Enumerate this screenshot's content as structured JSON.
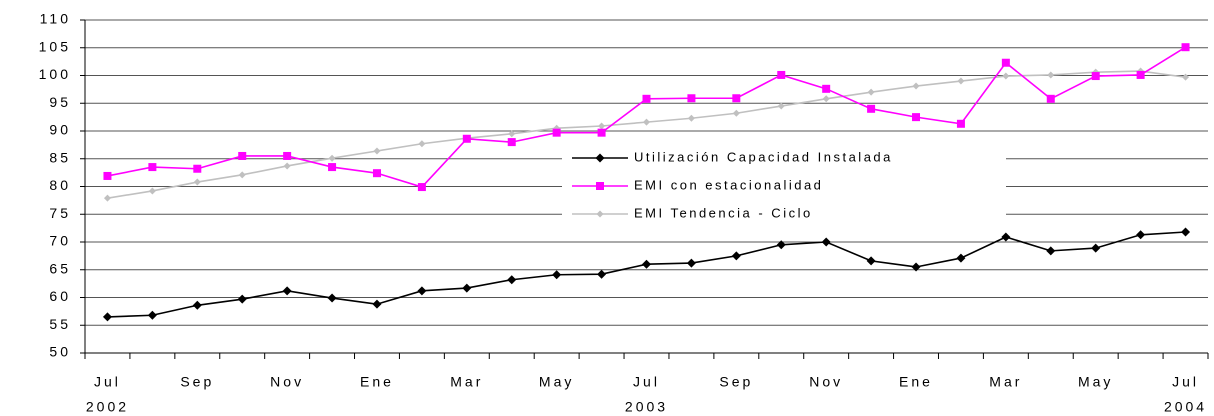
{
  "chart_data": {
    "type": "line",
    "categories": [
      "Jul",
      null,
      "Sep",
      null,
      "Nov",
      null,
      "Ene",
      null,
      "Mar",
      null,
      "May",
      null,
      "Jul",
      null,
      "Sep",
      null,
      "Nov",
      null,
      "Ene",
      null,
      "Mar",
      null,
      "May",
      null,
      "Jul"
    ],
    "years": [
      "2002",
      null,
      null,
      null,
      null,
      null,
      null,
      null,
      null,
      null,
      null,
      null,
      "2003",
      null,
      null,
      null,
      null,
      null,
      null,
      null,
      null,
      null,
      null,
      null,
      "2004"
    ],
    "series": [
      {
        "name": "Utilización Capacidad Instalada",
        "color": "#000000",
        "marker": "diamond",
        "values": [
          56.5,
          56.8,
          58.6,
          59.7,
          61.2,
          59.9,
          58.8,
          61.2,
          61.7,
          63.2,
          64.1,
          64.2,
          66.0,
          66.2,
          67.5,
          69.5,
          70.0,
          66.6,
          65.5,
          67.1,
          70.9,
          68.4,
          68.9,
          71.3,
          71.8
        ]
      },
      {
        "name": "EMI con estacionalidad",
        "color": "#ff00ff",
        "marker": "square",
        "values": [
          81.9,
          83.5,
          83.2,
          85.5,
          85.5,
          83.5,
          82.4,
          79.9,
          88.6,
          88.0,
          89.7,
          89.7,
          95.8,
          95.9,
          95.9,
          100.1,
          97.6,
          94.0,
          92.5,
          91.3,
          102.3,
          95.8,
          99.9,
          100.1,
          105.1
        ]
      },
      {
        "name": "EMI Tendencia - Ciclo",
        "color": "#c0c0c0",
        "marker": "diamond",
        "values": [
          77.9,
          79.2,
          80.8,
          82.1,
          83.7,
          85.1,
          86.4,
          87.7,
          88.7,
          89.5,
          90.5,
          90.9,
          91.6,
          92.3,
          93.2,
          94.5,
          95.8,
          97.0,
          98.1,
          99.0,
          99.9,
          100.1,
          100.6,
          100.8,
          99.7
        ]
      }
    ],
    "ylim": [
      50,
      110
    ],
    "yticks": [
      50,
      55,
      60,
      65,
      70,
      75,
      80,
      85,
      90,
      95,
      100,
      105,
      110
    ],
    "grid": true,
    "legend": "center"
  }
}
